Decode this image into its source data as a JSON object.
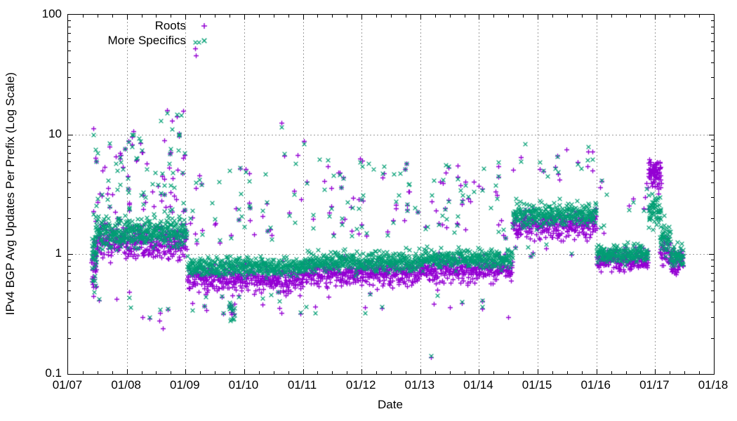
{
  "chart_data": {
    "type": "scatter",
    "title": "",
    "xlabel": "Date",
    "ylabel": "IPv4 BGP Avg Updates Per Prefix (Log Scale)",
    "x_axis": {
      "range_years": [
        7,
        18
      ],
      "ticks": [
        {
          "label": "01/07",
          "year": 7
        },
        {
          "label": "01/08",
          "year": 8
        },
        {
          "label": "01/09",
          "year": 9
        },
        {
          "label": "01/10",
          "year": 10
        },
        {
          "label": "01/11",
          "year": 11
        },
        {
          "label": "01/12",
          "year": 12
        },
        {
          "label": "01/13",
          "year": 13
        },
        {
          "label": "01/14",
          "year": 14
        },
        {
          "label": "01/15",
          "year": 15
        },
        {
          "label": "01/16",
          "year": 16
        },
        {
          "label": "01/17",
          "year": 17
        },
        {
          "label": "01/18",
          "year": 18
        }
      ],
      "minor_ticks_per_interval": 3
    },
    "y_axis": {
      "scale": "log10",
      "range": [
        0.1,
        100
      ],
      "ticks": [
        {
          "label": "100",
          "value": 100
        },
        {
          "label": "10",
          "value": 10
        },
        {
          "label": "1",
          "value": 1
        },
        {
          "label": "0.1",
          "value": 0.1
        }
      ],
      "minor_multiples": [
        2,
        3,
        4,
        5,
        6,
        7,
        8,
        9
      ]
    },
    "grid": {
      "show": true,
      "style": "dotted",
      "color": "#9c9c9c"
    },
    "legend": {
      "position": "top-left-inside",
      "entries": [
        {
          "label": "Roots",
          "marker": "plus",
          "color": "#9400d3"
        },
        {
          "label": "More Specifics",
          "marker": "cross",
          "color": "#009e73"
        }
      ]
    },
    "series": [
      {
        "name": "roots",
        "label": "Roots",
        "marker": "plus",
        "color": "#9400d3"
      },
      {
        "name": "specifics",
        "label": "More Specifics",
        "marker": "cross",
        "color": "#009e73"
      }
    ],
    "pattern_segments": [
      {
        "id": "startup-column",
        "from": 7.4,
        "to": 7.48,
        "roots": {
          "n": 30,
          "log_center": -0.08,
          "log_spread": 0.22
        },
        "specifics": {
          "n": 30,
          "log_center": -0.02,
          "log_spread": 0.2
        },
        "high_events": {
          "n": 2,
          "log_min": 0.3,
          "log_max": 0.75
        },
        "low_events": {
          "n": 2,
          "log_min": -0.35,
          "log_max": -0.25
        }
      },
      {
        "id": "era1-high-band",
        "from": 7.46,
        "to": 9.02,
        "roots": {
          "n": 360,
          "log_center": 0.11,
          "log_spread": 0.135
        },
        "specifics": {
          "n": 380,
          "log_center": 0.19,
          "log_spread": 0.12
        },
        "high_events": {
          "n": 70,
          "log_min": 0.33,
          "log_max": 0.98
        },
        "xhigh_events": {
          "n": 8,
          "log_min": 0.72,
          "log_max": 1.2
        },
        "low_events": {
          "n": 8,
          "log_min": -0.55,
          "log_max": -0.28
        }
      },
      {
        "id": "low-band-2009-2011",
        "from": 9.03,
        "to": 11.0,
        "roots": {
          "n": 400,
          "log_center": -0.2,
          "log_spread": 0.1
        },
        "specifics": {
          "n": 420,
          "log_center": -0.1,
          "log_spread": 0.075
        },
        "high_events": {
          "n": 42,
          "log_min": 0.12,
          "log_max": 0.85
        },
        "low_events": {
          "n": 14,
          "log_min": -0.52,
          "log_max": -0.32
        }
      },
      {
        "id": "dip-late-2009",
        "from": 9.74,
        "to": 9.84,
        "roots": {
          "n": 10,
          "log_center": -0.45,
          "log_spread": 0.1
        },
        "specifics": {
          "n": 14,
          "log_center": -0.48,
          "log_spread": 0.09
        }
      },
      {
        "id": "band-2011-2013",
        "from": 11.0,
        "to": 13.0,
        "roots": {
          "n": 400,
          "log_center": -0.16,
          "log_spread": 0.1
        },
        "specifics": {
          "n": 420,
          "log_center": -0.065,
          "log_spread": 0.08
        },
        "high_events": {
          "n": 52,
          "log_min": 0.15,
          "log_max": 0.8
        },
        "low_events": {
          "n": 6,
          "log_min": -0.5,
          "log_max": -0.33
        }
      },
      {
        "id": "band-2013-mid2014",
        "from": 13.0,
        "to": 14.57,
        "roots": {
          "n": 320,
          "log_center": -0.125,
          "log_spread": 0.1
        },
        "specifics": {
          "n": 330,
          "log_center": -0.035,
          "log_spread": 0.08
        },
        "high_events": {
          "n": 40,
          "log_min": 0.15,
          "log_max": 0.75
        },
        "low_events": {
          "n": 5,
          "log_min": -0.52,
          "log_max": -0.33
        }
      },
      {
        "id": "elevated-mid2014-2016",
        "from": 14.57,
        "to": 16.0,
        "roots": {
          "n": 300,
          "log_center": 0.25,
          "log_spread": 0.11
        },
        "specifics": {
          "n": 310,
          "log_center": 0.335,
          "log_spread": 0.095
        },
        "high_events": {
          "n": 16,
          "log_min": 0.55,
          "log_max": 0.88
        },
        "low_events": {
          "n": 6,
          "log_min": -0.02,
          "log_max": 0.08
        }
      },
      {
        "id": "low-2016",
        "from": 16.0,
        "to": 16.88,
        "roots": {
          "n": 190,
          "log_center": -0.045,
          "log_spread": 0.085
        },
        "specifics": {
          "n": 195,
          "log_center": 0.005,
          "log_spread": 0.07
        },
        "high_events": {
          "n": 11,
          "log_min": 0.2,
          "log_max": 0.62
        }
      },
      {
        "id": "spike-2017",
        "from": 16.88,
        "to": 17.1,
        "roots": {
          "n": 75,
          "log_center": 0.67,
          "log_spread": 0.13
        },
        "specifics": {
          "n": 60,
          "log_center": 0.37,
          "log_spread": 0.12
        }
      },
      {
        "id": "decay-2017",
        "from": 17.08,
        "to": 17.26,
        "roots": {
          "n": 40,
          "log_center": 0.02,
          "log_spread": 0.11
        },
        "specifics": {
          "n": 45,
          "log_center": 0.14,
          "log_spread": 0.13
        }
      },
      {
        "id": "end-2017",
        "from": 17.26,
        "to": 17.48,
        "roots": {
          "n": 60,
          "log_center": -0.06,
          "log_spread": 0.1
        },
        "specifics": {
          "n": 60,
          "log_center": -0.01,
          "log_spread": 0.09
        }
      }
    ],
    "notable_points": [
      {
        "series": "roots",
        "x": 7.425,
        "y": 11.3
      },
      {
        "series": "specifics",
        "x": 7.425,
        "y": 10.0
      },
      {
        "series": "specifics",
        "x": 9.17,
        "y": 59
      },
      {
        "series": "specifics",
        "x": 9.22,
        "y": 59
      },
      {
        "series": "roots",
        "x": 9.17,
        "y": 52
      },
      {
        "series": "roots",
        "x": 9.18,
        "y": 45.5
      },
      {
        "series": "roots",
        "x": 8.96,
        "y": 15.7
      },
      {
        "series": "specifics",
        "x": 8.93,
        "y": 14.5
      },
      {
        "series": "roots",
        "x": 8.69,
        "y": 16.0
      },
      {
        "series": "specifics",
        "x": 8.69,
        "y": 15.2
      },
      {
        "series": "roots",
        "x": 10.64,
        "y": 12.6
      },
      {
        "series": "specifics",
        "x": 10.64,
        "y": 11.5
      },
      {
        "series": "roots",
        "x": 11.02,
        "y": 8.8
      },
      {
        "series": "specifics",
        "x": 11.02,
        "y": 8.4
      },
      {
        "series": "roots",
        "x": 13.18,
        "y": 0.138
      },
      {
        "series": "specifics",
        "x": 13.18,
        "y": 0.142
      },
      {
        "series": "specifics",
        "x": 14.78,
        "y": 8.4
      },
      {
        "series": "roots",
        "x": 13.5,
        "y": 0.36
      },
      {
        "series": "roots",
        "x": 14.5,
        "y": 0.3
      },
      {
        "series": "roots",
        "x": 8.55,
        "y": 0.28
      },
      {
        "series": "roots",
        "x": 8.62,
        "y": 0.24
      }
    ]
  }
}
